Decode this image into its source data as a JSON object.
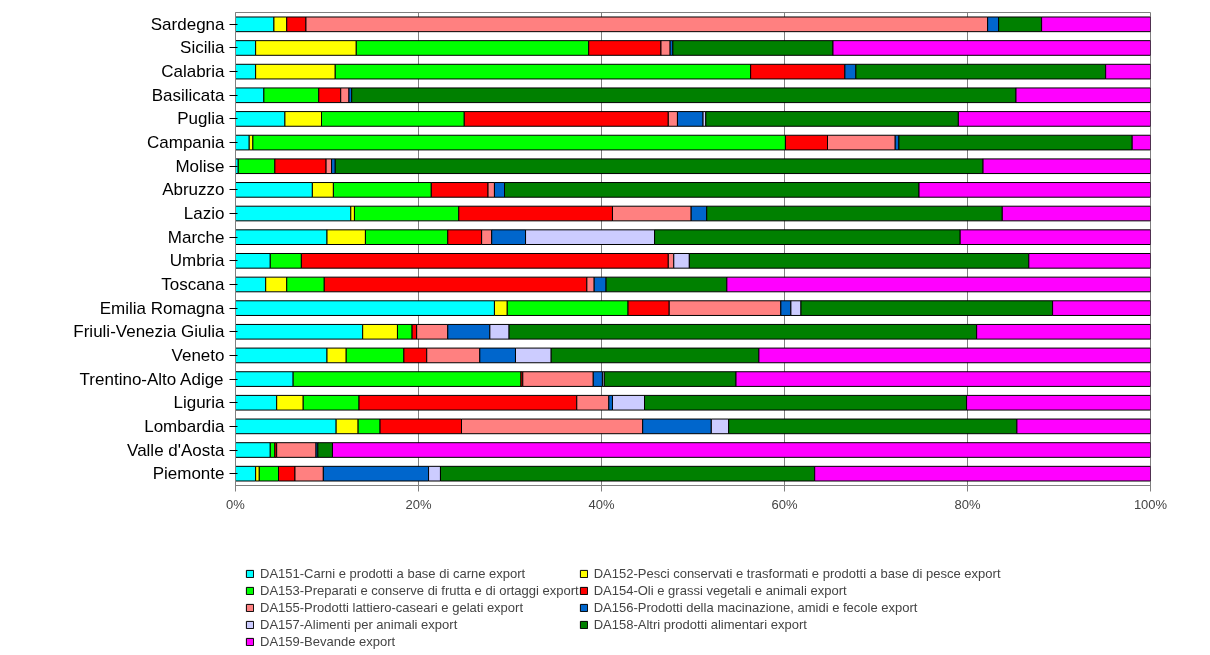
{
  "chart_data": {
    "type": "bar",
    "orientation": "horizontal",
    "stacked": true,
    "categories": [
      "Sardegna",
      "Sicilia",
      "Calabria",
      "Basilicata",
      "Puglia",
      "Campania",
      "Molise",
      "Abruzzo",
      "Lazio",
      "Marche",
      "Umbria",
      "Toscana",
      "Emilia Romagna",
      "Friuli-Venezia Giulia",
      "Veneto",
      "Trentino-Alto Adige",
      "Liguria",
      "Lombardia",
      "Valle d'Aosta",
      "Piemonte"
    ],
    "series": [
      {
        "name": "DA151-Carni e prodotti a base di carne export",
        "color": "#00ffff",
        "values": [
          4.2,
          2.2,
          2.2,
          3.1,
          5.4,
          1.5,
          0.3,
          8.4,
          12.6,
          10.0,
          3.8,
          3.3,
          28.3,
          13.9,
          10.0,
          6.3,
          4.5,
          11.0,
          3.8,
          2.2
        ]
      },
      {
        "name": "DA152-Pesci conservati e trasformati e prodotti a base di pesce export",
        "color": "#ffff00",
        "values": [
          1.4,
          11.0,
          8.7,
          0,
          4.0,
          0.4,
          0,
          2.3,
          0.4,
          4.2,
          0,
          2.3,
          1.4,
          3.8,
          2.1,
          0,
          2.9,
          2.4,
          0,
          0.4
        ]
      },
      {
        "name": "DA153-Preparati e conserve di frutta e di ortaggi export",
        "color": "#00ff00",
        "values": [
          0,
          25.4,
          45.4,
          6.0,
          15.6,
          58.2,
          4.0,
          10.7,
          11.4,
          9.0,
          3.4,
          4.1,
          13.2,
          1.6,
          6.3,
          24.9,
          6.1,
          2.4,
          0.5,
          2.1
        ]
      },
      {
        "name": "DA154-Oli e grassi vegetali e animali export",
        "color": "#ff0000",
        "values": [
          2.1,
          7.9,
          10.3,
          2.4,
          22.3,
          4.6,
          5.6,
          6.2,
          16.8,
          3.7,
          40.1,
          28.7,
          4.5,
          0.5,
          2.5,
          0.2,
          23.8,
          8.9,
          0.2,
          1.8
        ]
      },
      {
        "name": "DA155-Prodotti lattiero-caseari e gelati export",
        "color": "#ff8080",
        "values": [
          74.5,
          1.0,
          0,
          0.9,
          1.0,
          7.4,
          0.6,
          0.7,
          8.6,
          1.1,
          0.6,
          0.8,
          12.2,
          3.4,
          5.8,
          7.7,
          3.5,
          19.8,
          4.3,
          3.1
        ]
      },
      {
        "name": "DA156-Prodotti della macinazione, amidi e fecole export",
        "color": "#0066cc",
        "values": [
          1.2,
          0.3,
          1.2,
          0.3,
          2.8,
          0.4,
          0.4,
          1.1,
          1.7,
          3.7,
          0,
          1.3,
          1.1,
          4.6,
          3.9,
          1.0,
          0.4,
          7.5,
          0.2,
          11.5
        ]
      },
      {
        "name": "DA157-Alimenti per animali export",
        "color": "#ccccff",
        "values": [
          0,
          0,
          0,
          0,
          0.3,
          0,
          0,
          0,
          0,
          14.1,
          1.7,
          0,
          1.1,
          2.1,
          3.9,
          0.2,
          3.5,
          1.9,
          0,
          1.3
        ]
      },
      {
        "name": "DA158-Altri prodotti alimentari export",
        "color": "#008000",
        "values": [
          4.7,
          17.5,
          27.3,
          72.6,
          27.6,
          25.5,
          70.8,
          45.3,
          32.3,
          33.4,
          37.1,
          13.2,
          27.5,
          51.1,
          22.7,
          14.4,
          35.2,
          31.5,
          1.6,
          40.9
        ]
      },
      {
        "name": "DA159-Bevande export",
        "color": "#ff00ff",
        "values": [
          11.9,
          34.7,
          4.9,
          14.7,
          21.0,
          2.0,
          18.3,
          25.3,
          16.2,
          20.8,
          13.3,
          46.3,
          10.7,
          19.0,
          42.8,
          45.3,
          20.1,
          14.6,
          89.4,
          36.7
        ]
      }
    ],
    "xlim": [
      0,
      100
    ],
    "xticks": [
      {
        "value": 0,
        "label": "0%"
      },
      {
        "value": 20,
        "label": "20%"
      },
      {
        "value": 40,
        "label": "40%"
      },
      {
        "value": 60,
        "label": "60%"
      },
      {
        "value": 80,
        "label": "80%"
      },
      {
        "value": 100,
        "label": "100%"
      }
    ],
    "grid": "x",
    "legend": "bottom"
  }
}
